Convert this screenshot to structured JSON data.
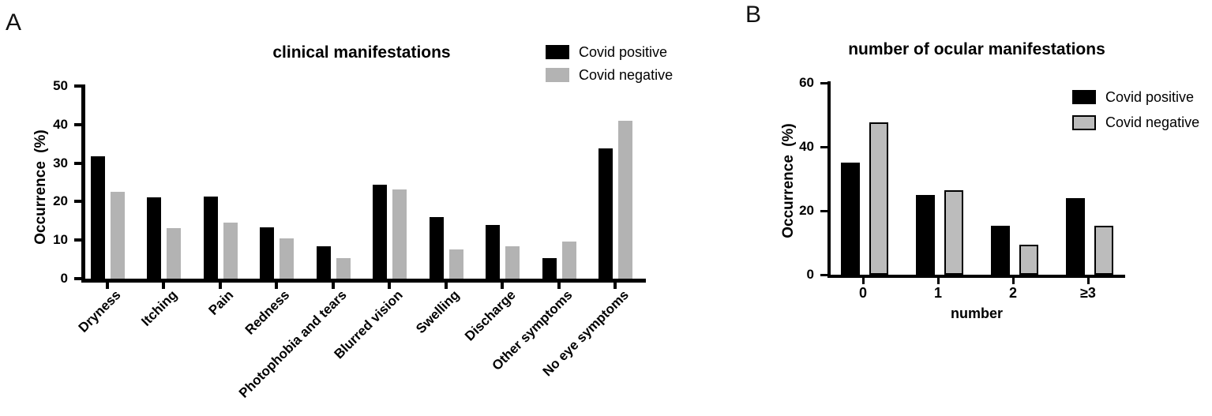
{
  "panel_labels": [
    "A",
    "B"
  ],
  "legend": [
    "Covid positive",
    "Covid negative"
  ],
  "colors": {
    "covid_positive": "#000000",
    "covid_negative": "#b3b3b3",
    "covid_negative_outline": "#000000"
  },
  "chart_data": [
    {
      "type": "bar",
      "title": "clinical manifestations",
      "ylabel": "Occurrence (%)",
      "xlabel": "",
      "ylim": [
        0,
        50
      ],
      "yticks": [
        0,
        10,
        20,
        30,
        40,
        50
      ],
      "grid": false,
      "legend_position": "top-right",
      "categories": [
        "Dryness",
        "Itching",
        "Pain",
        "Redness",
        "Photophobia and tears",
        "Blurred vision",
        "Swelling",
        "Discharge",
        "Other symptoms",
        "No eye symptoms"
      ],
      "series": [
        {
          "name": "Covid positive",
          "color": "#000000",
          "values": [
            31.7,
            21.1,
            21.4,
            13.4,
            8.3,
            24.3,
            16.0,
            14.0,
            5.3,
            33.8
          ]
        },
        {
          "name": "Covid negative",
          "color": "#b3b3b3",
          "values": [
            22.5,
            13.2,
            14.5,
            10.5,
            5.4,
            23.2,
            7.5,
            8.4,
            9.7,
            41.0
          ]
        }
      ]
    },
    {
      "type": "bar",
      "title": "number of ocular manifestations",
      "ylabel": "Occurrence (%)",
      "xlabel": "number",
      "ylim": [
        0,
        60
      ],
      "yticks": [
        0,
        20,
        40,
        60
      ],
      "grid": false,
      "legend_position": "top-right",
      "categories": [
        "0",
        "1",
        "2",
        "≥3"
      ],
      "series": [
        {
          "name": "Covid positive",
          "color": "#000000",
          "values": [
            35.0,
            25.0,
            15.3,
            24.0
          ]
        },
        {
          "name": "Covid negative",
          "color": "#bcbcbc",
          "border": "#000000",
          "values": [
            47.6,
            26.3,
            9.5,
            15.4
          ]
        }
      ]
    }
  ]
}
